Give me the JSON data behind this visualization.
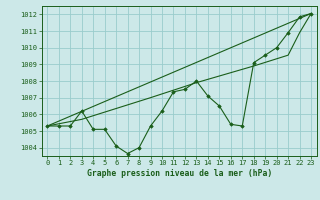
{
  "bg_color": "#cce8e8",
  "grid_color": "#99cccc",
  "line_color": "#1a5e1a",
  "marker_color": "#1a5e1a",
  "title": "Graphe pression niveau de la mer (hPa)",
  "xlim": [
    -0.5,
    23.5
  ],
  "ylim": [
    1003.5,
    1012.5
  ],
  "yticks": [
    1004,
    1005,
    1006,
    1007,
    1008,
    1009,
    1010,
    1011,
    1012
  ],
  "xticks": [
    0,
    1,
    2,
    3,
    4,
    5,
    6,
    7,
    8,
    9,
    10,
    11,
    12,
    13,
    14,
    15,
    16,
    17,
    18,
    19,
    20,
    21,
    22,
    23
  ],
  "series1_x": [
    0,
    1,
    2,
    3,
    4,
    5,
    6,
    7,
    8,
    9,
    10,
    11,
    12,
    13,
    14,
    15,
    16,
    17,
    18,
    19,
    20,
    21,
    22,
    23
  ],
  "series1_y": [
    1005.3,
    1005.3,
    1005.3,
    1006.2,
    1005.1,
    1005.1,
    1004.1,
    1003.65,
    1004.0,
    1005.3,
    1006.2,
    1007.35,
    1007.5,
    1008.0,
    1007.1,
    1006.5,
    1005.4,
    1005.3,
    1009.1,
    1009.55,
    1010.0,
    1010.9,
    1011.85,
    1012.05
  ],
  "series2_x": [
    0,
    23
  ],
  "series2_y": [
    1005.3,
    1012.05
  ],
  "series3_x": [
    0,
    3,
    9,
    13,
    18,
    21,
    22,
    23
  ],
  "series3_y": [
    1005.3,
    1005.7,
    1007.0,
    1007.9,
    1008.9,
    1009.55,
    1010.9,
    1012.05
  ]
}
